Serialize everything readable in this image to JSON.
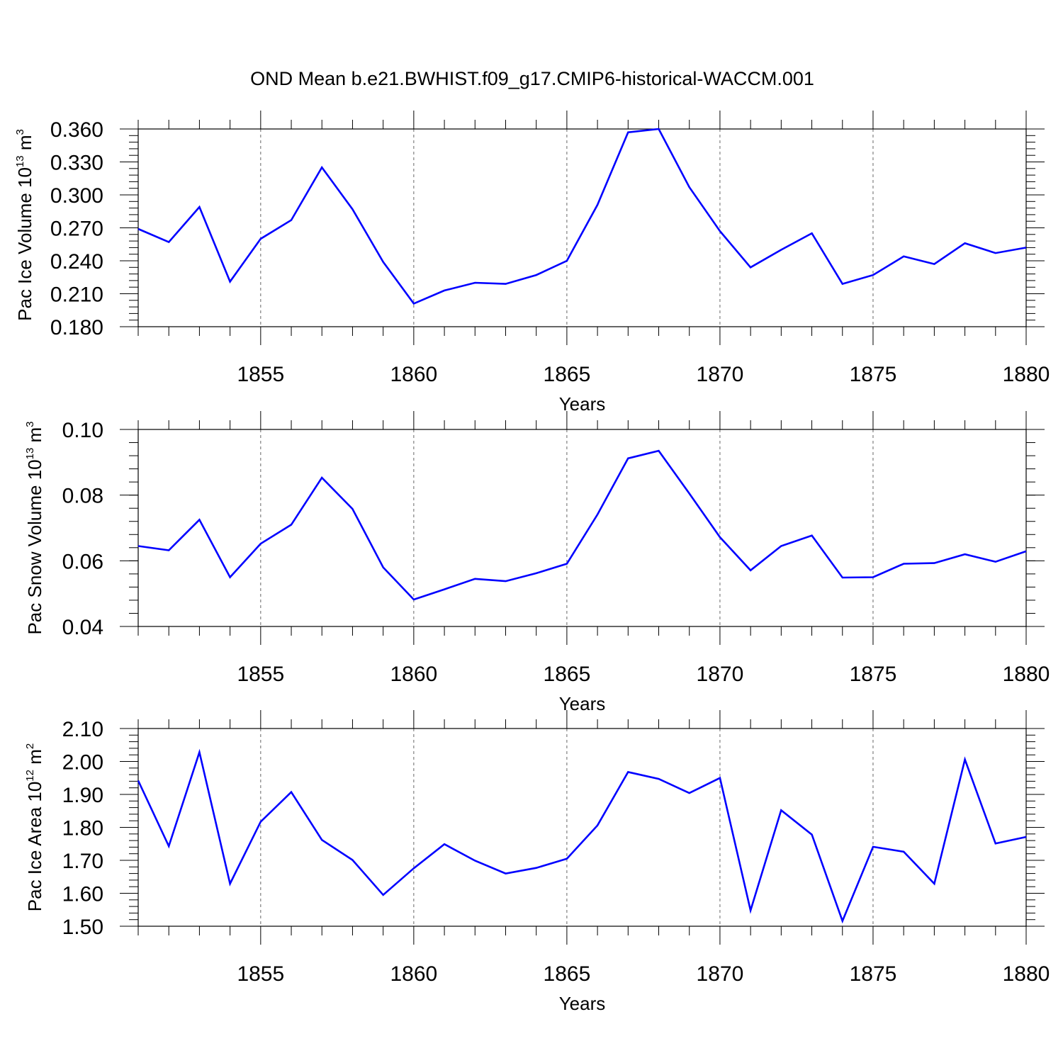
{
  "figure": {
    "title": "OND Mean b.e21.BWHIST.f09_g17.CMIP6-historical-WACCM.001",
    "line_color": "#0000ff"
  },
  "chart_data": [
    {
      "type": "line",
      "xlabel": "Years",
      "ylabel": {
        "prefix": "Pac Ice Volume 10",
        "exp": "13",
        "unit": " m",
        "unit_exp": "3"
      },
      "xlim": [
        1851,
        1880
      ],
      "ylim": [
        0.18,
        0.36
      ],
      "xticks": [
        1855,
        1860,
        1865,
        1870,
        1875,
        1880
      ],
      "xtick_labels": [
        "1855",
        "1860",
        "1865",
        "1870",
        "1875",
        "1880"
      ],
      "yticks": [
        0.18,
        0.21,
        0.24,
        0.27,
        0.3,
        0.33,
        0.36
      ],
      "ytick_labels": [
        "0.180",
        "0.210",
        "0.240",
        "0.270",
        "0.300",
        "0.330",
        "0.360"
      ],
      "y_minor_step": 0.006,
      "grid": "vertical-dashed",
      "series": [
        {
          "name": "Pac Ice Volume",
          "x": [
            1851,
            1852,
            1853,
            1854,
            1855,
            1856,
            1857,
            1858,
            1859,
            1860,
            1861,
            1862,
            1863,
            1864,
            1865,
            1866,
            1867,
            1868,
            1869,
            1870,
            1871,
            1872,
            1873,
            1874,
            1875,
            1876,
            1877,
            1878,
            1879,
            1880
          ],
          "values": [
            0.269,
            0.257,
            0.289,
            0.221,
            0.26,
            0.277,
            0.325,
            0.287,
            0.239,
            0.201,
            0.213,
            0.22,
            0.219,
            0.227,
            0.24,
            0.291,
            0.357,
            0.36,
            0.307,
            0.267,
            0.234,
            0.25,
            0.265,
            0.219,
            0.227,
            0.244,
            0.237,
            0.256,
            0.247,
            0.252
          ]
        }
      ]
    },
    {
      "type": "line",
      "xlabel": "Years",
      "ylabel": {
        "prefix": "Pac Snow Volume 10",
        "exp": "13",
        "unit": " m",
        "unit_exp": "3"
      },
      "xlim": [
        1851,
        1880
      ],
      "ylim": [
        0.04,
        0.1
      ],
      "xticks": [
        1855,
        1860,
        1865,
        1870,
        1875,
        1880
      ],
      "xtick_labels": [
        "1855",
        "1860",
        "1865",
        "1870",
        "1875",
        "1880"
      ],
      "yticks": [
        0.04,
        0.06,
        0.08,
        0.1
      ],
      "ytick_labels": [
        "0.04",
        "0.06",
        "0.08",
        "0.10"
      ],
      "y_minor_step": 0.004,
      "grid": "vertical-dashed",
      "series": [
        {
          "name": "Pac Snow Volume",
          "x": [
            1851,
            1852,
            1853,
            1854,
            1855,
            1856,
            1857,
            1858,
            1859,
            1860,
            1861,
            1862,
            1863,
            1864,
            1865,
            1866,
            1867,
            1868,
            1869,
            1870,
            1871,
            1872,
            1873,
            1874,
            1875,
            1876,
            1877,
            1878,
            1879,
            1880
          ],
          "values": [
            0.0645,
            0.0632,
            0.0725,
            0.055,
            0.0652,
            0.071,
            0.0853,
            0.0758,
            0.058,
            0.0482,
            0.0513,
            0.0545,
            0.0538,
            0.0562,
            0.0591,
            0.0741,
            0.0912,
            0.0935,
            0.0805,
            0.0672,
            0.0571,
            0.0645,
            0.0677,
            0.0549,
            0.055,
            0.0591,
            0.0593,
            0.062,
            0.0597,
            0.0629
          ]
        }
      ]
    },
    {
      "type": "line",
      "xlabel": "Years",
      "ylabel": {
        "prefix": "Pac Ice Area 10",
        "exp": "12",
        "unit": " m",
        "unit_exp": "2"
      },
      "xlim": [
        1851,
        1880
      ],
      "ylim": [
        1.5,
        2.1
      ],
      "xticks": [
        1855,
        1860,
        1865,
        1870,
        1875,
        1880
      ],
      "xtick_labels": [
        "1855",
        "1860",
        "1865",
        "1870",
        "1875",
        "1880"
      ],
      "yticks": [
        1.5,
        1.6,
        1.7,
        1.8,
        1.9,
        2.0,
        2.1
      ],
      "ytick_labels": [
        "1.50",
        "1.60",
        "1.70",
        "1.80",
        "1.90",
        "2.00",
        "2.10"
      ],
      "y_minor_step": 0.02,
      "grid": "vertical-dashed",
      "series": [
        {
          "name": "Pac Ice Area",
          "x": [
            1851,
            1852,
            1853,
            1854,
            1855,
            1856,
            1857,
            1858,
            1859,
            1860,
            1861,
            1862,
            1863,
            1864,
            1865,
            1866,
            1867,
            1868,
            1869,
            1870,
            1871,
            1872,
            1873,
            1874,
            1875,
            1876,
            1877,
            1878,
            1879,
            1880
          ],
          "values": [
            1.942,
            1.743,
            2.028,
            1.629,
            1.817,
            1.907,
            1.762,
            1.701,
            1.595,
            1.676,
            1.749,
            1.699,
            1.66,
            1.677,
            1.705,
            1.806,
            1.968,
            1.947,
            1.904,
            1.95,
            1.548,
            1.852,
            1.778,
            1.516,
            1.741,
            1.726,
            1.629,
            2.006,
            1.751,
            1.771
          ]
        }
      ]
    }
  ]
}
